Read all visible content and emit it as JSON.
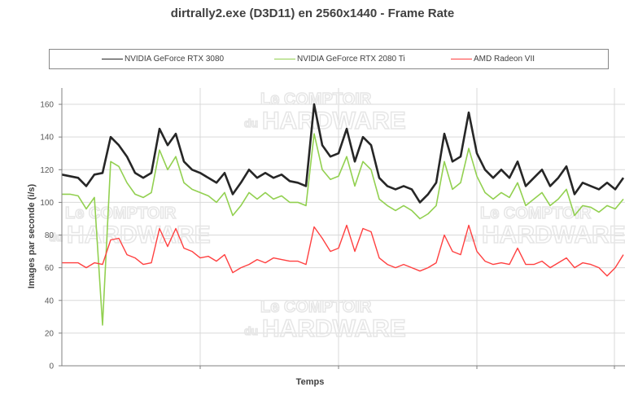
{
  "chart_data": {
    "type": "line",
    "title": "dirtrally2.exe (D3D11) en 2560x1440 - Frame Rate",
    "xlabel": "Temps",
    "ylabel": "Images par seconde (i/s)",
    "ylim": [
      0,
      170
    ],
    "yticks": [
      "0",
      "20",
      "40",
      "60",
      "80",
      "100",
      "120",
      "140",
      "160"
    ],
    "grid": true,
    "legend_position": "top",
    "series": [
      {
        "name": "NVIDIA GeForce RTX 3080",
        "color": "#262626",
        "values": [
          117,
          116,
          115,
          110,
          117,
          118,
          140,
          135,
          128,
          118,
          115,
          118,
          145,
          135,
          142,
          125,
          120,
          118,
          115,
          112,
          118,
          105,
          112,
          120,
          115,
          118,
          115,
          117,
          113,
          112,
          110,
          160,
          135,
          128,
          130,
          145,
          125,
          140,
          135,
          115,
          110,
          108,
          110,
          108,
          100,
          105,
          112,
          142,
          125,
          128,
          155,
          130,
          120,
          115,
          120,
          115,
          125,
          110,
          115,
          120,
          110,
          115,
          122,
          105,
          112,
          110,
          108,
          112,
          108,
          115
        ]
      },
      {
        "name": "NVIDIA GeForce RTX 2080 Ti",
        "color": "#92d050",
        "values": [
          105,
          105,
          104,
          96,
          103,
          25,
          125,
          122,
          112,
          105,
          103,
          106,
          132,
          120,
          128,
          112,
          108,
          106,
          104,
          100,
          106,
          92,
          98,
          106,
          102,
          106,
          102,
          104,
          100,
          100,
          98,
          142,
          120,
          114,
          116,
          128,
          110,
          125,
          120,
          102,
          98,
          95,
          98,
          95,
          90,
          93,
          98,
          125,
          108,
          112,
          133,
          116,
          106,
          102,
          106,
          103,
          112,
          98,
          102,
          106,
          98,
          102,
          108,
          92,
          98,
          97,
          94,
          98,
          96,
          102
        ]
      },
      {
        "name": "AMD Radeon VII",
        "color": "#ff4040",
        "values": [
          63,
          63,
          63,
          60,
          63,
          62,
          77,
          78,
          68,
          66,
          62,
          63,
          84,
          73,
          84,
          72,
          70,
          66,
          67,
          64,
          68,
          57,
          60,
          62,
          65,
          63,
          66,
          65,
          64,
          64,
          62,
          85,
          78,
          70,
          72,
          86,
          70,
          84,
          82,
          66,
          62,
          60,
          62,
          60,
          58,
          60,
          63,
          80,
          70,
          68,
          86,
          70,
          64,
          62,
          63,
          62,
          72,
          62,
          62,
          64,
          60,
          63,
          66,
          60,
          63,
          62,
          60,
          55,
          60,
          68
        ]
      }
    ]
  },
  "watermark": "Le COMPTOIR du HARDWARE"
}
